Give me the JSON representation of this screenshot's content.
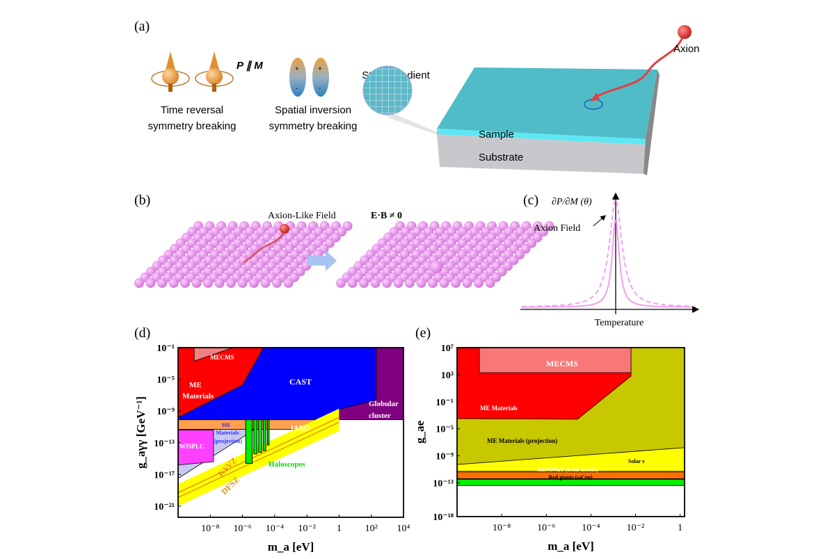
{
  "panel_a": {
    "label": "(a)",
    "time_reversal_line1": "Time reversal",
    "time_reversal_line2": "symmetry breaking",
    "p_parallel_m": "P ∥ M",
    "spatial_line1": "Spatial inversion",
    "spatial_line2": "symmetry breaking",
    "plus": "+",
    "minus": "-",
    "strain_gradient": "Strain gradient",
    "axion": "Axion",
    "sample": "Sample",
    "substrate": "Substrate"
  },
  "panel_b": {
    "label": "(b)",
    "field_label": "Axion-Like Field",
    "equation": "E·B ≠ 0"
  },
  "panel_c": {
    "label": "(c)",
    "ylabel": "∂P/∂M (θ)",
    "annotation": "Axion Field",
    "xlabel": "Temperature"
  },
  "colors": {
    "red": "#ff0000",
    "blue": "#0000ff",
    "purple": "#800080",
    "pink": "#f08080",
    "olive": "#c8c800",
    "yellow": "#ffff00",
    "orange": "#ff7000",
    "green": "#00ee00",
    "lavender": "#c8c8f0",
    "magenta": "#ff40ff",
    "teal": "#4fbcc6"
  },
  "chart_data": [
    {
      "panel": "(d)",
      "type": "area",
      "xlabel": "m_a [eV]",
      "ylabel": "g_aγγ [GeV⁻¹]",
      "xscale": "log",
      "yscale": "log",
      "xlim_log10": [
        -10,
        4
      ],
      "ylim_log10": [
        -22.4,
        -1
      ],
      "xticks": [
        {
          "v": -8,
          "l": "10⁻⁸"
        },
        {
          "v": -6,
          "l": "10⁻⁶"
        },
        {
          "v": -4,
          "l": "10⁻⁴"
        },
        {
          "v": -2,
          "l": "10⁻²"
        },
        {
          "v": 0,
          "l": "1"
        },
        {
          "v": 2,
          "l": "10²"
        },
        {
          "v": 4,
          "l": "10⁴"
        }
      ],
      "yticks": [
        {
          "v": -1,
          "l": "10⁻¹"
        },
        {
          "v": -5,
          "l": "10⁻⁵"
        },
        {
          "v": -9,
          "l": "10⁻⁹"
        },
        {
          "v": -13,
          "l": "10⁻¹³"
        },
        {
          "v": -17,
          "l": "10⁻¹⁷"
        },
        {
          "v": -21,
          "l": "10⁻²¹"
        }
      ],
      "regions": [
        {
          "name": "CAST",
          "color": "#0000ff",
          "points_log10": [
            [
              -4.7,
              -1
            ],
            [
              2.3,
              -1
            ],
            [
              2.3,
              -7.6
            ],
            [
              0,
              -8.8
            ],
            [
              0,
              -9.7
            ],
            [
              -1.8,
              -10.1
            ],
            [
              -10,
              -10.1
            ],
            [
              -10,
              -9.8
            ],
            [
              -6,
              -5.7
            ]
          ]
        },
        {
          "name": "Globular cluster",
          "color": "#800080",
          "points_log10": [
            [
              2.3,
              -1
            ],
            [
              4,
              -1
            ],
            [
              4,
              -10.1
            ],
            [
              -1.8,
              -10.1
            ],
            [
              0,
              -9.7
            ],
            [
              0,
              -8.8
            ],
            [
              2.3,
              -7.6
            ]
          ]
        },
        {
          "name": "ME Materials",
          "color": "#ff0000",
          "points_log10": [
            [
              -10,
              -1
            ],
            [
              -4.7,
              -1
            ],
            [
              -6,
              -5.7
            ],
            [
              -10,
              -9.8
            ]
          ]
        },
        {
          "name": "MECMS",
          "color": "#f08080",
          "points_log10": [
            [
              -9,
              -1
            ],
            [
              -6.6,
              -1
            ],
            [
              -9,
              -2.7
            ]
          ]
        },
        {
          "name": "IAXO",
          "color": "#ffa050",
          "points_log10": [
            [
              -10,
              -10.1
            ],
            [
              0,
              -10.1
            ],
            [
              -0.6,
              -11.3
            ],
            [
              -10,
              -11.3
            ]
          ]
        },
        {
          "name": "ME Materials (projection)",
          "color": "#c8c8f0",
          "points_log10": [
            [
              -10,
              -11.3
            ],
            [
              -5.3,
              -11.3
            ],
            [
              -5.3,
              -11.4
            ],
            [
              -10,
              -17.5
            ]
          ]
        },
        {
          "name": "WISPLC",
          "color": "#ff40ff",
          "points_log10": [
            [
              -10,
              -11.4
            ],
            [
              -7.8,
              -11.4
            ],
            [
              -7.8,
              -15.4
            ],
            [
              -10,
              -15.8
            ]
          ]
        }
      ],
      "haloscopes": {
        "name": "Haloscopes",
        "color": "#00ee00",
        "bars_log10": [
          [
            -5.8,
            -5.4,
            -15.6
          ],
          [
            -5.3,
            -5.1,
            -14.4
          ],
          [
            -5.0,
            -4.8,
            -14.2
          ],
          [
            -4.7,
            -4.55,
            -14.0
          ],
          [
            -4.45,
            -4.35,
            -13.3
          ]
        ]
      },
      "qcd_band": {
        "color": "#ffff00",
        "line_color": "#e08000",
        "from_log10": [
          -10,
          -19.6
        ],
        "to_log10": [
          0,
          -10.1
        ],
        "half_width_decades": 1.4
      },
      "labels": [
        "MECMS",
        "ME",
        "Materials",
        "CAST",
        "Globular",
        "cluster",
        "IAXO",
        "ME",
        "Materials",
        "(projection)",
        "WISPLC",
        "KSVZ",
        "DFSZ",
        "Haloscopes"
      ]
    },
    {
      "panel": "(e)",
      "type": "area",
      "xlabel": "m_a [eV]",
      "ylabel": "g_ae",
      "xscale": "log",
      "yscale": "log",
      "xlim_log10": [
        -10,
        0.2
      ],
      "ylim_log10": [
        -18,
        7
      ],
      "xticks": [
        {
          "v": -8,
          "l": "10⁻⁸"
        },
        {
          "v": -6,
          "l": "10⁻⁶"
        },
        {
          "v": -4,
          "l": "10⁻⁴"
        },
        {
          "v": -2,
          "l": "10⁻²"
        },
        {
          "v": 0,
          "l": "1"
        }
      ],
      "yticks": [
        {
          "v": 7,
          "l": "10⁷"
        },
        {
          "v": 3,
          "l": "10³"
        },
        {
          "v": -1,
          "l": "10⁻¹"
        },
        {
          "v": -5,
          "l": "10⁻⁵"
        },
        {
          "v": -9,
          "l": "10⁻⁹"
        },
        {
          "v": -13,
          "l": "10⁻¹³"
        },
        {
          "v": -18,
          "l": "10⁻¹⁸"
        }
      ],
      "regions": [
        {
          "name": "ME Materials (projection)",
          "color": "#c8c800",
          "points_log10": [
            [
              -10,
              7
            ],
            [
              0.2,
              7
            ],
            [
              0.2,
              -7.8
            ],
            [
              -10,
              -10.3
            ]
          ]
        },
        {
          "name": "ME Materials",
          "color": "#ff0000",
          "points_log10": [
            [
              -10,
              7
            ],
            [
              -2.2,
              7
            ],
            [
              -2.2,
              2.8
            ],
            [
              -4.6,
              -3.6
            ],
            [
              -10,
              -3.5
            ]
          ]
        },
        {
          "name": "MECMS",
          "color": "#f87878",
          "points_log10": [
            [
              -9,
              7
            ],
            [
              -2.2,
              7
            ],
            [
              -2.2,
              3.3
            ],
            [
              -9,
              3.3
            ]
          ]
        },
        {
          "name": "Solar ν",
          "color": "#ffff00",
          "points_log10": [
            [
              -10,
              -10.3
            ],
            [
              0.2,
              -7.8
            ],
            [
              0.2,
              -11.3
            ],
            [
              -10,
              -11.3
            ]
          ]
        },
        {
          "name": "XENONnT (Solar axions)",
          "color": "#ff7000",
          "points_log10": [
            [
              -10,
              -11.4
            ],
            [
              0.2,
              -11.4
            ],
            [
              0.2,
              -12.4
            ],
            [
              -10,
              -12.4
            ]
          ]
        },
        {
          "name": "Red giants (ωCen)",
          "color": "#00ee00",
          "points_log10": [
            [
              -10,
              -12.5
            ],
            [
              0.2,
              -12.5
            ],
            [
              0.2,
              -13.4
            ],
            [
              -10,
              -13.4
            ]
          ]
        }
      ],
      "labels": [
        "MECMS",
        "ME Materials",
        "ME Materials (projection)",
        "Solar ν",
        "XENONnT (Solar axions)",
        "Red giants (ωCen)"
      ]
    }
  ],
  "panel_d_label": "(d)",
  "panel_e_label": "(e)"
}
